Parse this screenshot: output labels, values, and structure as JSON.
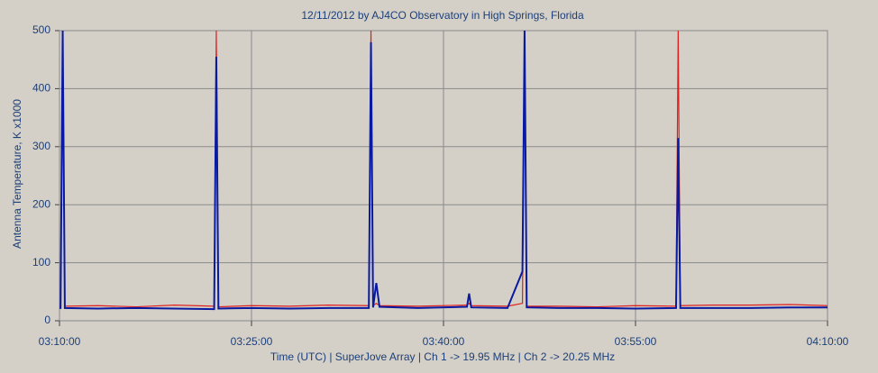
{
  "chart_data": {
    "type": "line",
    "title": "12/11/2012  by  AJ4CO Observatory  in  High Springs, Florida",
    "x_label": "Time (UTC)  |  SuperJove Array  |  Ch 1 -> 19.95 MHz  |  Ch 2 -> 20.25 MHz",
    "y_label": "Antenna Temperature, K x1000",
    "x": [
      "03:10:00",
      "03:10:05",
      "03:10:15",
      "03:10:25",
      "03:13:00",
      "03:16:00",
      "03:19:00",
      "03:22:05",
      "03:22:15",
      "03:22:25",
      "03:25:00",
      "03:28:00",
      "03:31:00",
      "03:34:10",
      "03:34:20",
      "03:34:30",
      "03:34:45",
      "03:35:00",
      "03:38:00",
      "03:41:50",
      "03:42:00",
      "03:42:10",
      "03:45:00",
      "03:46:10",
      "03:46:20",
      "03:46:30",
      "03:49:00",
      "03:52:00",
      "03:55:00",
      "03:58:10",
      "03:58:20",
      "03:58:30",
      "04:01:00",
      "04:04:00",
      "04:07:00",
      "04:10:00"
    ],
    "series": [
      {
        "color": "#e02020",
        "values": [
          25,
          25,
          500,
          25,
          26,
          24,
          27,
          25,
          500,
          24,
          26,
          25,
          27,
          26,
          500,
          26,
          30,
          26,
          25,
          27,
          30,
          26,
          25,
          30,
          500,
          25,
          25,
          24,
          26,
          25,
          500,
          26,
          27,
          27,
          28,
          26
        ]
      },
      {
        "color": "#0a1aa0",
        "values": [
          22,
          22,
          500,
          22,
          21,
          22,
          21,
          20,
          455,
          21,
          22,
          21,
          22,
          22,
          480,
          23,
          65,
          24,
          22,
          24,
          47,
          23,
          22,
          85,
          500,
          23,
          22,
          22,
          21,
          22,
          315,
          22,
          22,
          22,
          23,
          23
        ]
      }
    ],
    "xlim": [
      "03:10:00",
      "04:10:00"
    ],
    "xticks": [
      "03:10:00",
      "03:25:00",
      "03:40:00",
      "03:55:00",
      "04:10:00"
    ],
    "ylim": [
      0,
      500
    ],
    "yticks": [
      0,
      100,
      200,
      300,
      400,
      500
    ],
    "grid": true
  }
}
